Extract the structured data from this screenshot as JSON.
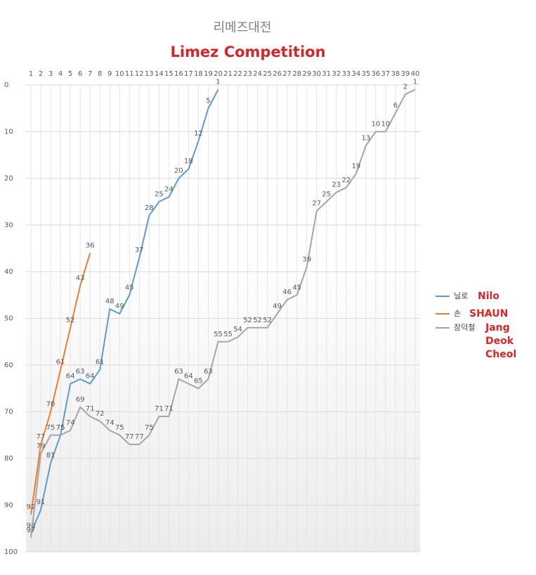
{
  "chart_data": {
    "type": "line",
    "title": "리메즈대전",
    "subtitle": "Limez Competition",
    "categories": [
      1,
      2,
      3,
      4,
      5,
      6,
      7,
      8,
      9,
      10,
      11,
      12,
      13,
      14,
      15,
      16,
      17,
      18,
      19,
      20,
      21,
      22,
      23,
      24,
      25,
      26,
      27,
      28,
      29,
      30,
      31,
      32,
      33,
      34,
      35,
      36,
      37,
      38,
      39,
      40
    ],
    "series": [
      {
        "name": "닐로",
        "color": "#5b9bd5",
        "values": [
          96,
          91,
          81,
          75,
          64,
          63,
          64,
          61,
          48,
          49,
          45,
          37,
          28,
          25,
          24,
          20,
          18,
          12,
          5,
          1,
          null,
          null,
          null,
          null,
          null,
          null,
          null,
          null,
          null,
          null,
          null,
          null,
          null,
          null,
          null,
          null,
          null,
          null,
          null,
          null
        ]
      },
      {
        "name": "손",
        "color": "#ed7d31",
        "values": [
          92,
          77,
          70,
          61,
          52,
          43,
          36,
          null,
          null,
          null,
          null,
          null,
          null,
          null,
          null,
          null,
          null,
          null,
          null,
          null,
          null,
          null,
          null,
          null,
          null,
          null,
          null,
          null,
          null,
          null,
          null,
          null,
          null,
          null,
          null,
          null,
          null,
          null,
          null,
          null
        ]
      },
      {
        "name": "장덕철",
        "color": "#a5a5a5",
        "values": [
          97,
          79,
          75,
          75,
          74,
          69,
          71,
          72,
          74,
          75,
          77,
          77,
          75,
          71,
          71,
          63,
          64,
          65,
          63,
          55,
          55,
          54,
          52,
          52,
          52,
          49,
          46,
          45,
          39,
          27,
          25,
          23,
          22,
          19,
          13,
          10,
          10,
          6,
          2,
          1
        ]
      }
    ],
    "legend_annotations": [
      [
        "Nilo"
      ],
      [
        "SHAUN"
      ],
      [
        "Jang",
        "Deok",
        "Cheol"
      ]
    ],
    "ylim": [
      0,
      100
    ],
    "yticks": [
      0,
      10,
      20,
      30,
      40,
      50,
      60,
      70,
      80,
      90,
      100
    ],
    "y_inverted": true,
    "grid": true,
    "legend": "right"
  }
}
